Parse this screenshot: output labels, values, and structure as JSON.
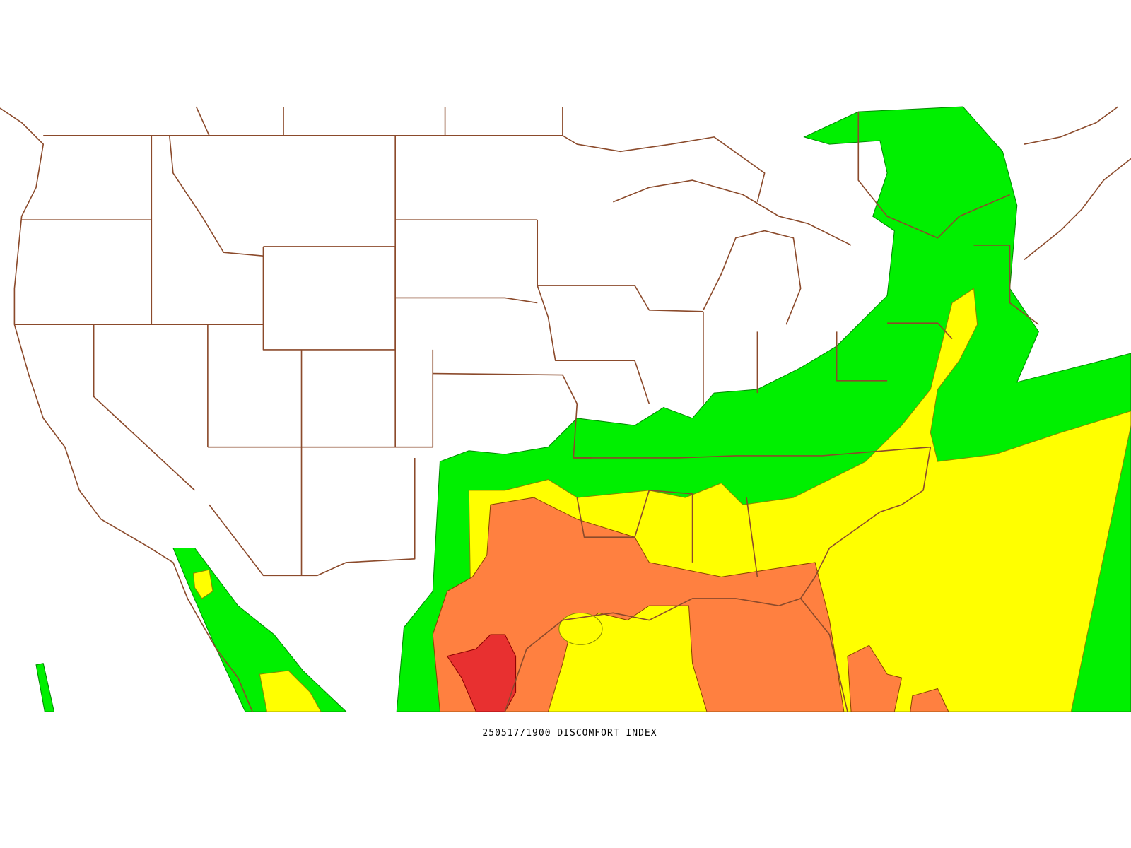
{
  "caption": "250517/1900 DISCOMFORT INDEX"
}
